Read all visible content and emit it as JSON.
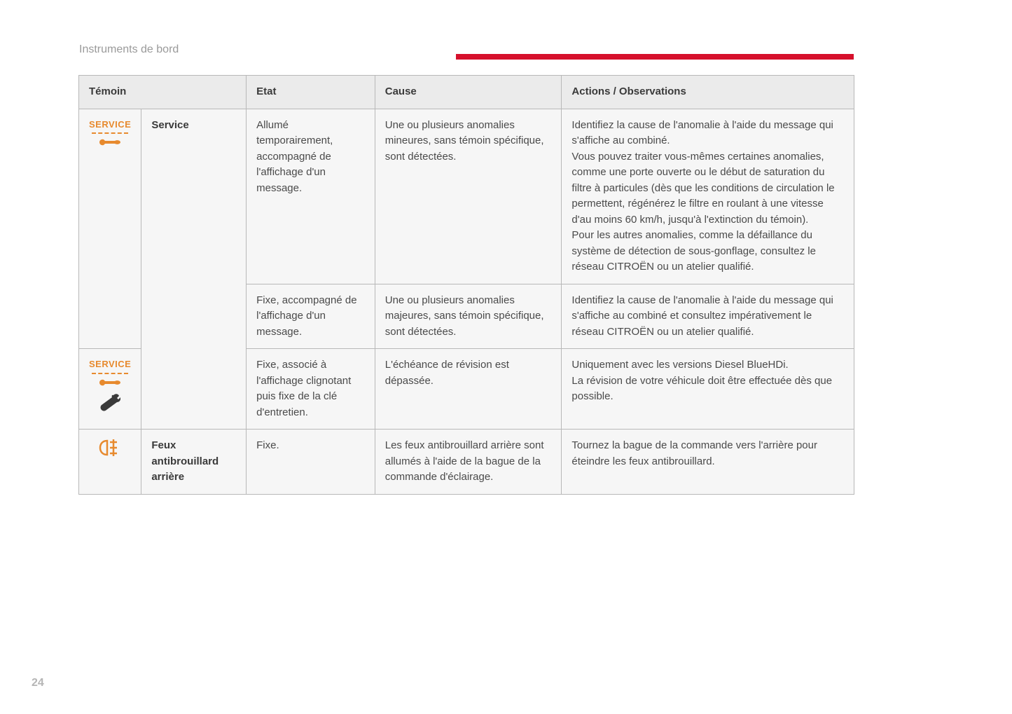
{
  "page": {
    "section_title": "Instruments de bord",
    "page_number": "24",
    "accent_color": "#d6102c",
    "icon_color": "#e78a2e",
    "wrench_black": "#3a3a3a"
  },
  "table": {
    "headers": {
      "temoin": "Témoin",
      "etat": "Etat",
      "cause": "Cause",
      "actions": "Actions / Observations"
    },
    "rows": {
      "r1": {
        "icon_label": "SERVICE",
        "name": "Service",
        "etat": "Allumé temporairement, accompagné de l'affichage d'un message.",
        "cause": "Une ou plusieurs anomalies mineures, sans témoin spécifique, sont détectées.",
        "actions": "Identifiez la cause de l'anomalie à l'aide du message qui s'affiche au combiné.\nVous pouvez traiter vous-mêmes certaines anomalies, comme une porte ouverte ou le début de saturation du filtre à particules (dès que les conditions de circulation le permettent, régénérez le filtre en roulant à une vitesse d'au moins 60 km/h, jusqu'à l'extinction du témoin).\nPour les autres anomalies, comme la défaillance du système de détection de sous-gonflage, consultez le réseau CITROËN ou un atelier qualifié."
      },
      "r2": {
        "etat": "Fixe, accompagné de l'affichage d'un message.",
        "cause": "Une ou plusieurs anomalies majeures, sans témoin spécifique, sont détectées.",
        "actions": "Identifiez la cause de l'anomalie à l'aide du message qui s'affiche au combiné et consultez impérativement le réseau CITROËN ou un atelier qualifié."
      },
      "r3": {
        "icon_label": "SERVICE",
        "etat": "Fixe, associé à l'affichage clignotant puis fixe de la clé d'entretien.",
        "cause": "L'échéance de révision est dépassée.",
        "actions": "Uniquement avec les versions Diesel BlueHDi.\nLa révision de votre véhicule doit être effectuée dès que possible."
      },
      "r4": {
        "name": "Feux antibrouillard arrière",
        "etat": "Fixe.",
        "cause": "Les feux antibrouillard arrière sont allumés à l'aide de la bague de la commande d'éclairage.",
        "actions": "Tournez la bague de la commande vers l'arrière pour éteindre les feux antibrouillard."
      }
    }
  }
}
